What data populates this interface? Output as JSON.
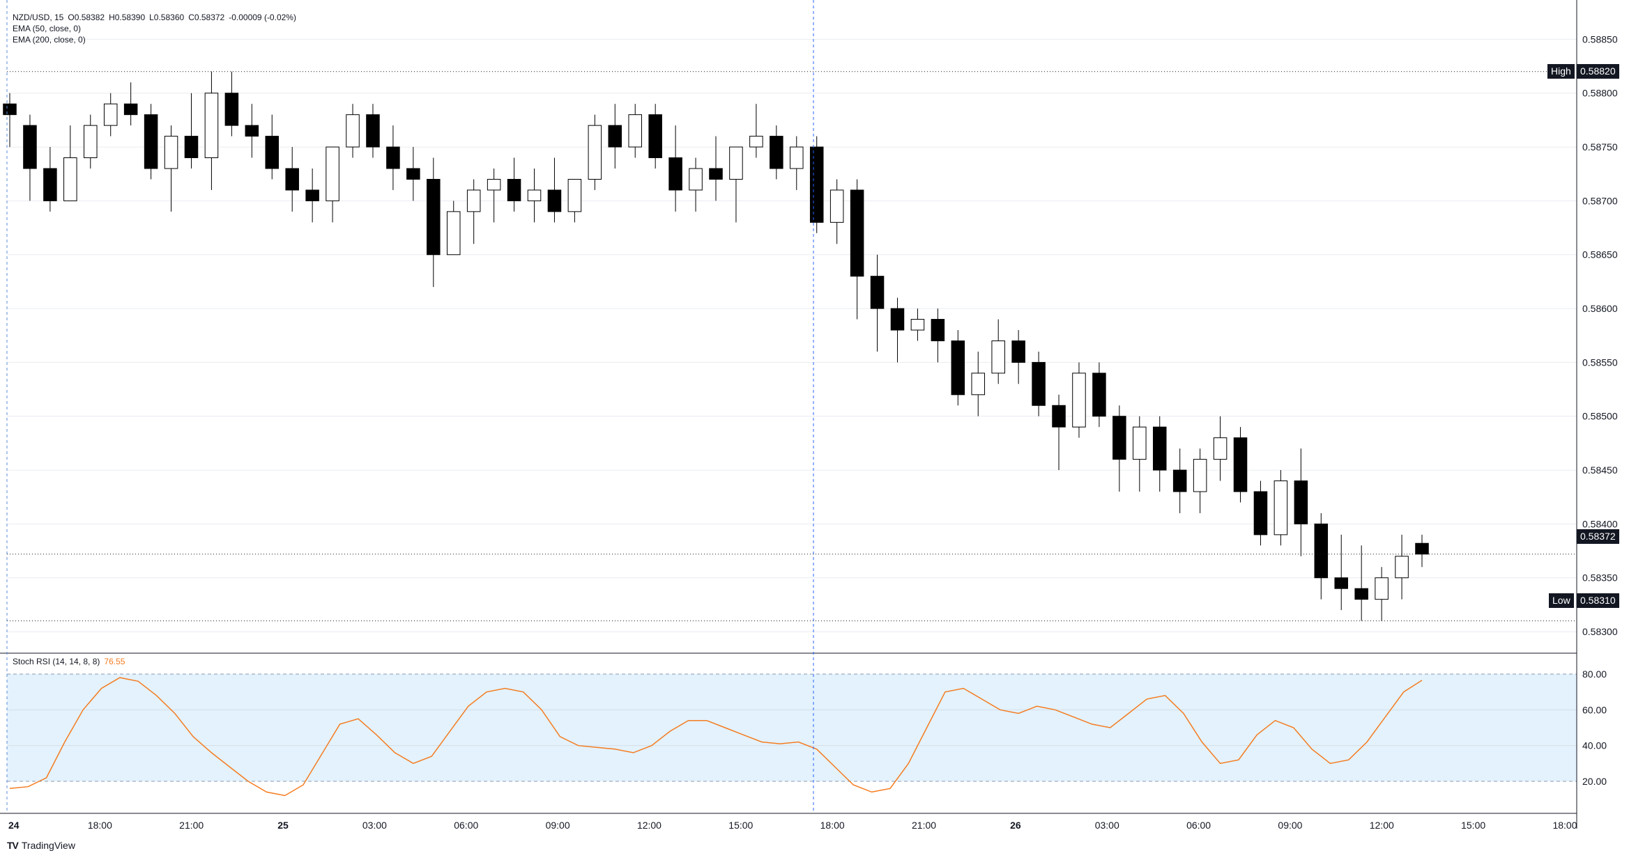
{
  "header": {
    "symbol_line": [
      {
        "text": "NZD/USD, 15"
      },
      {
        "text": "O0.58382"
      },
      {
        "text": "H0.58390"
      },
      {
        "text": "L0.58360"
      },
      {
        "text": "C0.58372"
      },
      {
        "text": "-0.00009 (-0.02%)"
      }
    ],
    "indicators": [
      "EMA (50, close, 0)",
      "EMA (200, close, 0)"
    ]
  },
  "rsi_legend": {
    "label": "Stoch RSI (14, 14, 8, 8)",
    "value": "76.55"
  },
  "price_axis": {
    "ticks": [
      "0.58850",
      "0.58800",
      "0.58750",
      "0.58700",
      "0.58650",
      "0.58600",
      "0.58550",
      "0.58500",
      "0.58450",
      "0.58400",
      "0.58350",
      "0.58300"
    ],
    "high": {
      "label": "High",
      "value": "0.58820"
    },
    "low": {
      "label": "Low",
      "value": "0.58310"
    },
    "current": {
      "value": "0.58372"
    }
  },
  "rsi_axis": {
    "ticks": [
      "80.00",
      "60.00",
      "40.00",
      "20.00"
    ]
  },
  "time_axis": {
    "ticks": [
      {
        "label": "24",
        "bold": true
      },
      {
        "label": "18:00",
        "bold": false
      },
      {
        "label": "21:00",
        "bold": false
      },
      {
        "label": "25",
        "bold": true
      },
      {
        "label": "03:00",
        "bold": false
      },
      {
        "label": "06:00",
        "bold": false
      },
      {
        "label": "09:00",
        "bold": false
      },
      {
        "label": "12:00",
        "bold": false
      },
      {
        "label": "15:00",
        "bold": false
      },
      {
        "label": "18:00",
        "bold": false
      },
      {
        "label": "21:00",
        "bold": false
      },
      {
        "label": "26",
        "bold": true
      },
      {
        "label": "03:00",
        "bold": false
      },
      {
        "label": "06:00",
        "bold": false
      },
      {
        "label": "09:00",
        "bold": false
      },
      {
        "label": "12:00",
        "bold": false
      },
      {
        "label": "15:00",
        "bold": false
      },
      {
        "label": "18:00",
        "bold": false
      }
    ]
  },
  "brand": {
    "name": "TradingView",
    "logo": "TV"
  },
  "colors": {
    "up": "#ffffff",
    "down": "#000000",
    "wick": "#000000",
    "rsi_line": "#f57c20",
    "rsi_band": "#e3f2fd",
    "crosshair": "#2962ff"
  },
  "chart_data": {
    "type": "candlestick",
    "symbol": "NZD/USD",
    "interval": "15",
    "price_range": [
      0.5828,
      0.5888
    ],
    "candles_ohlc_approx": [
      [
        0.5879,
        0.588,
        0.5875,
        0.5878
      ],
      [
        0.5877,
        0.5878,
        0.587,
        0.5873
      ],
      [
        0.5873,
        0.5875,
        0.5869,
        0.587
      ],
      [
        0.587,
        0.5877,
        0.587,
        0.5874
      ],
      [
        0.5874,
        0.5878,
        0.5873,
        0.5877
      ],
      [
        0.5877,
        0.588,
        0.5876,
        0.5879
      ],
      [
        0.5879,
        0.5881,
        0.5877,
        0.5878
      ],
      [
        0.5878,
        0.5879,
        0.5872,
        0.5873
      ],
      [
        0.5873,
        0.5877,
        0.5869,
        0.5876
      ],
      [
        0.5876,
        0.588,
        0.5873,
        0.5874
      ],
      [
        0.5874,
        0.5882,
        0.5871,
        0.588
      ],
      [
        0.588,
        0.5882,
        0.5876,
        0.5877
      ],
      [
        0.5877,
        0.5879,
        0.5874,
        0.5876
      ],
      [
        0.5876,
        0.5878,
        0.5872,
        0.5873
      ],
      [
        0.5873,
        0.5875,
        0.5869,
        0.5871
      ],
      [
        0.5871,
        0.5873,
        0.5868,
        0.587
      ],
      [
        0.587,
        0.5875,
        0.5868,
        0.5875
      ],
      [
        0.5875,
        0.5879,
        0.5874,
        0.5878
      ],
      [
        0.5878,
        0.5879,
        0.5874,
        0.5875
      ],
      [
        0.5875,
        0.5877,
        0.5871,
        0.5873
      ],
      [
        0.5873,
        0.5875,
        0.587,
        0.5872
      ],
      [
        0.5872,
        0.5874,
        0.5862,
        0.5865
      ],
      [
        0.5865,
        0.587,
        0.5865,
        0.5869
      ],
      [
        0.5869,
        0.5872,
        0.5866,
        0.5871
      ],
      [
        0.5871,
        0.5873,
        0.5868,
        0.5872
      ],
      [
        0.5872,
        0.5874,
        0.5869,
        0.587
      ],
      [
        0.587,
        0.5873,
        0.5868,
        0.5871
      ],
      [
        0.5871,
        0.5874,
        0.5868,
        0.5869
      ],
      [
        0.5869,
        0.5872,
        0.5868,
        0.5872
      ],
      [
        0.5872,
        0.5878,
        0.5871,
        0.5877
      ],
      [
        0.5877,
        0.5879,
        0.5873,
        0.5875
      ],
      [
        0.5875,
        0.5879,
        0.5874,
        0.5878
      ],
      [
        0.5878,
        0.5879,
        0.5873,
        0.5874
      ],
      [
        0.5874,
        0.5877,
        0.5869,
        0.5871
      ],
      [
        0.5871,
        0.5874,
        0.5869,
        0.5873
      ],
      [
        0.5873,
        0.5876,
        0.587,
        0.5872
      ],
      [
        0.5872,
        0.5875,
        0.5868,
        0.5875
      ],
      [
        0.5875,
        0.5879,
        0.5874,
        0.5876
      ],
      [
        0.5876,
        0.5877,
        0.5872,
        0.5873
      ],
      [
        0.5873,
        0.5876,
        0.5871,
        0.5875
      ],
      [
        0.5875,
        0.5876,
        0.5867,
        0.5868
      ],
      [
        0.5868,
        0.5872,
        0.5866,
        0.5871
      ],
      [
        0.5871,
        0.5872,
        0.5859,
        0.5863
      ],
      [
        0.5863,
        0.5865,
        0.5856,
        0.586
      ],
      [
        0.586,
        0.5861,
        0.5855,
        0.5858
      ],
      [
        0.5858,
        0.586,
        0.5857,
        0.5859
      ],
      [
        0.5859,
        0.586,
        0.5855,
        0.5857
      ],
      [
        0.5857,
        0.5858,
        0.5851,
        0.5852
      ],
      [
        0.5852,
        0.5856,
        0.585,
        0.5854
      ],
      [
        0.5854,
        0.5859,
        0.5853,
        0.5857
      ],
      [
        0.5857,
        0.5858,
        0.5853,
        0.5855
      ],
      [
        0.5855,
        0.5856,
        0.585,
        0.5851
      ],
      [
        0.5851,
        0.5852,
        0.5845,
        0.5849
      ],
      [
        0.5849,
        0.5855,
        0.5848,
        0.5854
      ],
      [
        0.5854,
        0.5855,
        0.5849,
        0.585
      ],
      [
        0.585,
        0.5851,
        0.5843,
        0.5846
      ],
      [
        0.5846,
        0.585,
        0.5843,
        0.5849
      ],
      [
        0.5849,
        0.585,
        0.5843,
        0.5845
      ],
      [
        0.5845,
        0.5847,
        0.5841,
        0.5843
      ],
      [
        0.5843,
        0.5847,
        0.5841,
        0.5846
      ],
      [
        0.5846,
        0.585,
        0.5844,
        0.5848
      ],
      [
        0.5848,
        0.5849,
        0.5842,
        0.5843
      ],
      [
        0.5843,
        0.5844,
        0.5838,
        0.5839
      ],
      [
        0.5839,
        0.5845,
        0.5838,
        0.5844
      ],
      [
        0.5844,
        0.5847,
        0.5837,
        0.584
      ],
      [
        0.584,
        0.5841,
        0.5833,
        0.5835
      ],
      [
        0.5835,
        0.5839,
        0.5832,
        0.5834
      ],
      [
        0.5834,
        0.5838,
        0.5831,
        0.5833
      ],
      [
        0.5833,
        0.5836,
        0.5831,
        0.5835
      ],
      [
        0.5835,
        0.5839,
        0.5833,
        0.5837
      ],
      [
        0.58382,
        0.5839,
        0.5836,
        0.58372
      ]
    ],
    "high": 0.5882,
    "low": 0.5831,
    "last": 0.58372,
    "stoch_rsi_k_approx": [
      16,
      17,
      22,
      42,
      60,
      72,
      78,
      76,
      68,
      58,
      45,
      36,
      28,
      20,
      14,
      12,
      18,
      35,
      52,
      55,
      46,
      36,
      30,
      34,
      48,
      62,
      70,
      72,
      70,
      60,
      45,
      40,
      39,
      38,
      36,
      40,
      48,
      54,
      54,
      50,
      46,
      42,
      41,
      42,
      38,
      28,
      18,
      14,
      16,
      30,
      50,
      70,
      72,
      66,
      60,
      58,
      62,
      60,
      56,
      52,
      50,
      58,
      66,
      68,
      58,
      42,
      30,
      32,
      46,
      54,
      50,
      38,
      30,
      32,
      42,
      56,
      70,
      76.55
    ],
    "rsi_range": [
      0,
      100
    ],
    "rsi_band": [
      20,
      80
    ]
  }
}
